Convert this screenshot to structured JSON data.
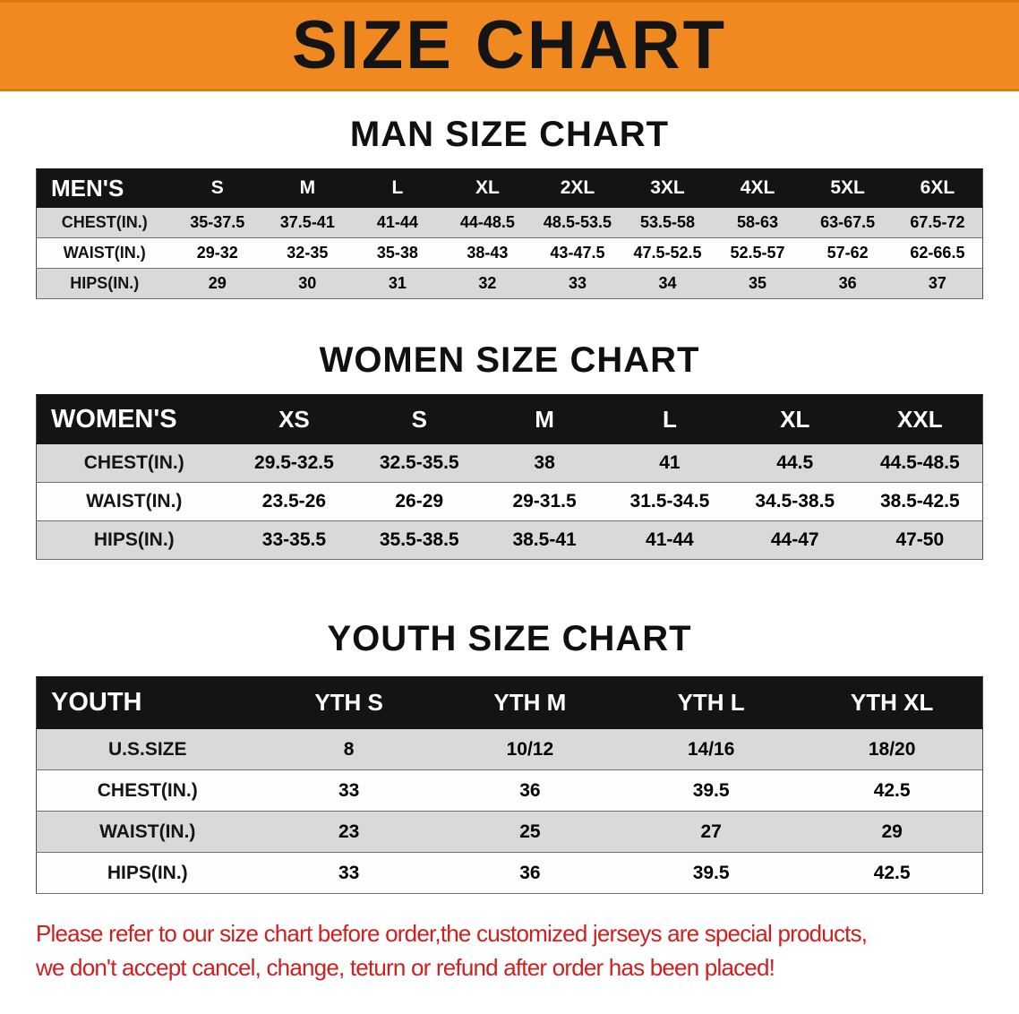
{
  "banner": {
    "title": "SIZE CHART",
    "bg_color": "#f0891f"
  },
  "sections": [
    {
      "id": "man",
      "heading": "MAN SIZE CHART",
      "table": {
        "header": [
          "MEN'S",
          "S",
          "M",
          "L",
          "XL",
          "2XL",
          "3XL",
          "4XL",
          "5XL",
          "6XL"
        ],
        "rows": [
          {
            "label": "CHEST(IN.)",
            "values": [
              "35-37.5",
              "37.5-41",
              "41-44",
              "44-48.5",
              "48.5-53.5",
              "53.5-58",
              "58-63",
              "63-67.5",
              "67.5-72"
            ]
          },
          {
            "label": "WAIST(IN.)",
            "values": [
              "29-32",
              "32-35",
              "35-38",
              "38-43",
              "43-47.5",
              "47.5-52.5",
              "52.5-57",
              "57-62",
              "62-66.5"
            ]
          },
          {
            "label": "HIPS(IN.)",
            "values": [
              "29",
              "30",
              "31",
              "32",
              "33",
              "34",
              "35",
              "36",
              "37"
            ]
          }
        ]
      }
    },
    {
      "id": "women",
      "heading": "WOMEN SIZE CHART",
      "table": {
        "header": [
          "WOMEN'S",
          "XS",
          "S",
          "M",
          "L",
          "XL",
          "XXL"
        ],
        "rows": [
          {
            "label": "CHEST(IN.)",
            "values": [
              "29.5-32.5",
              "32.5-35.5",
              "38",
              "41",
              "44.5",
              "44.5-48.5"
            ]
          },
          {
            "label": "WAIST(IN.)",
            "values": [
              "23.5-26",
              "26-29",
              "29-31.5",
              "31.5-34.5",
              "34.5-38.5",
              "38.5-42.5"
            ]
          },
          {
            "label": "HIPS(IN.)",
            "values": [
              "33-35.5",
              "35.5-38.5",
              "38.5-41",
              "41-44",
              "44-47",
              "47-50"
            ]
          }
        ]
      }
    },
    {
      "id": "youth",
      "heading": "YOUTH SIZE CHART",
      "table": {
        "header": [
          "YOUTH",
          "YTH S",
          "YTH M",
          "YTH L",
          "YTH XL"
        ],
        "rows": [
          {
            "label": "U.S.SIZE",
            "values": [
              "8",
              "10/12",
              "14/16",
              "18/20"
            ]
          },
          {
            "label": "CHEST(IN.)",
            "values": [
              "33",
              "36",
              "39.5",
              "42.5"
            ]
          },
          {
            "label": "WAIST(IN.)",
            "values": [
              "23",
              "25",
              "27",
              "29"
            ]
          },
          {
            "label": "HIPS(IN.)",
            "values": [
              "33",
              "36",
              "39.5",
              "42.5"
            ]
          }
        ]
      }
    }
  ],
  "footer": {
    "line1": "Please refer to our size chart before order,the customized jerseys are special products,",
    "line2": "we don't accept cancel, change, teturn or refund after order has been placed!",
    "text_color": "#d01f1f"
  },
  "colors": {
    "banner_bg": "#f0891f",
    "table_header_bg": "#141414",
    "row_gray": "#d9d9d9",
    "row_white": "#fdfdfd",
    "note_red": "#d01f1f"
  }
}
